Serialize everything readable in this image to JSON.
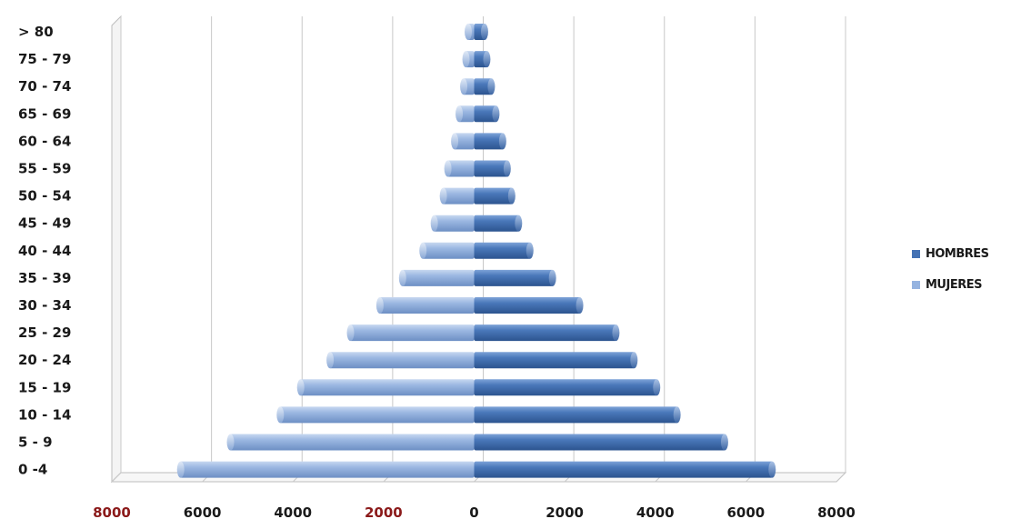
{
  "chart_data": {
    "type": "bar",
    "orientation": "horizontal",
    "subtype": "population-pyramid",
    "categories": [
      "0 -4",
      "5 - 9",
      "10 - 14",
      "15 - 19",
      "20 - 24",
      "25 - 29",
      "30 - 34",
      "35 - 39",
      "40 - 44",
      "45 - 49",
      "50 - 54",
      "55 - 59",
      "60 - 64",
      "65 - 69",
      "70 - 74",
      "75 - 79",
      "> 80"
    ],
    "series": [
      {
        "name": "HOMBRES",
        "color": "#4472b4",
        "values": [
          6600,
          5550,
          4500,
          4050,
          3550,
          3150,
          2350,
          1750,
          1250,
          1000,
          850,
          750,
          650,
          500,
          400,
          300,
          250
        ]
      },
      {
        "name": "MUJERES",
        "color": "#95b3e0",
        "values": [
          6500,
          5400,
          4300,
          3850,
          3200,
          2750,
          2100,
          1600,
          1150,
          900,
          700,
          600,
          450,
          350,
          250,
          200,
          150
        ]
      }
    ],
    "xlim": [
      -8000,
      8000
    ],
    "x_ticks": [
      -8000,
      -6000,
      -4000,
      -2000,
      0,
      2000,
      4000,
      6000,
      8000
    ],
    "x_tick_labels": [
      "8000",
      "6000",
      "4000",
      "2000",
      "0",
      "2000",
      "4000",
      "6000",
      "8000"
    ],
    "x_tick_colors": [
      "#8b1a1a",
      "#1a1a1a",
      "#1a1a1a",
      "#8b1a1a",
      "#1a1a1a",
      "#1a1a1a",
      "#1a1a1a",
      "#1a1a1a",
      "#1a1a1a"
    ],
    "grid": true,
    "legend_position": "right",
    "legend_order": [
      "HOMBRES",
      "MUJERES"
    ],
    "title": "",
    "xlabel": "",
    "ylabel": ""
  }
}
